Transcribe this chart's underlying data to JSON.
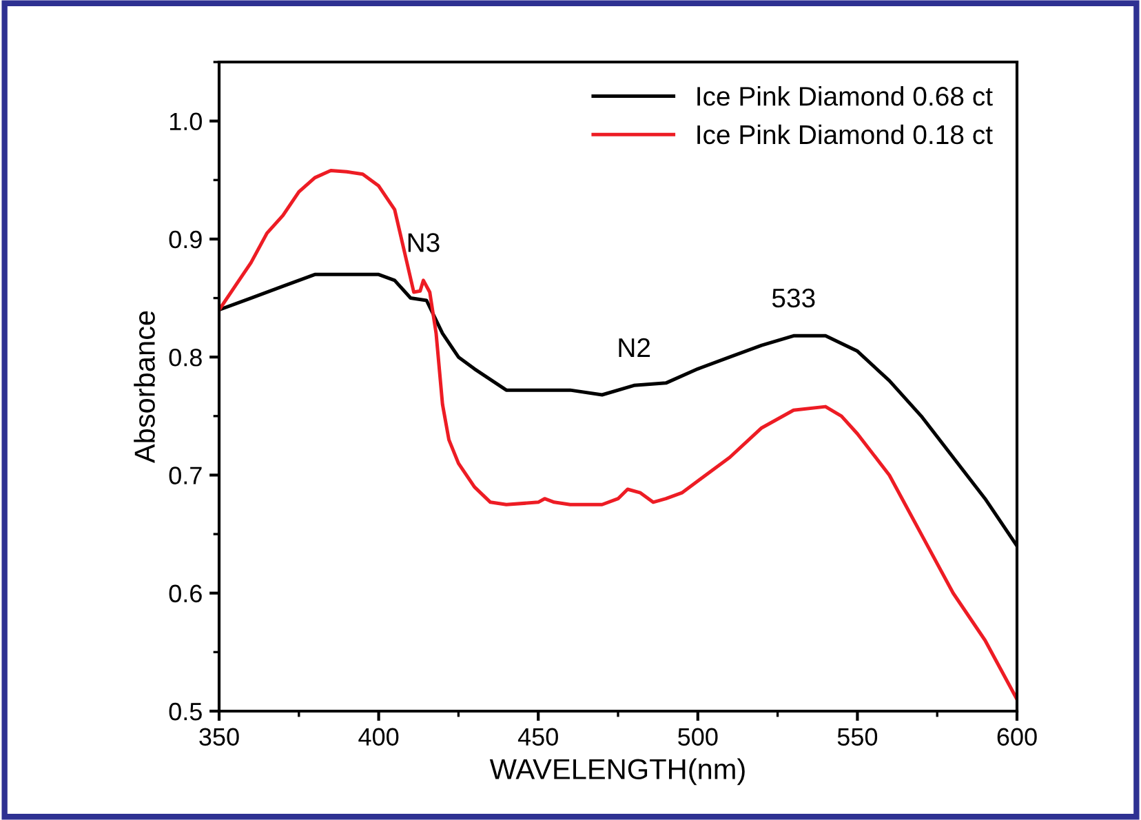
{
  "chart_data": {
    "type": "line",
    "xlabel": "WAVELENGTH(nm)",
    "ylabel": "Absorbance",
    "xlim": [
      350,
      600
    ],
    "xticks": [
      350,
      400,
      450,
      500,
      550,
      600
    ],
    "ylim": [
      0.5,
      1.05
    ],
    "yticks": [
      0.5,
      0.6,
      0.7,
      0.8,
      0.9,
      {
        "value": 1,
        "label": "1.0"
      }
    ],
    "grid": false,
    "legend": "top right",
    "marker": "none",
    "line_style": "solid",
    "annotations": [
      {
        "text": "N3",
        "x": 414,
        "y": 0.865
      },
      {
        "text": "N2",
        "x": 480,
        "y": 0.776
      },
      {
        "text": "533",
        "x": 530,
        "y": 0.818
      }
    ],
    "series": [
      {
        "name": "Ice Pink Diamond 0.68 ct",
        "color": "#000000",
        "x": [
          350,
          360,
          370,
          380,
          390,
          400,
          405,
          410,
          415,
          420,
          425,
          430,
          440,
          450,
          460,
          470,
          480,
          490,
          500,
          510,
          520,
          530,
          540,
          550,
          560,
          570,
          580,
          590,
          600
        ],
        "values": [
          0.84,
          0.85,
          0.86,
          0.87,
          0.87,
          0.87,
          0.865,
          0.85,
          0.848,
          0.82,
          0.8,
          0.79,
          0.772,
          0.772,
          0.772,
          0.768,
          0.776,
          0.778,
          0.79,
          0.8,
          0.81,
          0.818,
          0.818,
          0.805,
          0.78,
          0.75,
          0.715,
          0.68,
          0.64
        ]
      },
      {
        "name": "Ice Pink Diamond 0.18 ct",
        "color": "#ed1c24",
        "x": [
          350,
          355,
          360,
          365,
          370,
          375,
          380,
          385,
          390,
          395,
          400,
          405,
          408,
          411,
          413,
          414,
          416,
          418,
          420,
          422,
          425,
          430,
          435,
          440,
          450,
          452,
          455,
          460,
          470,
          475,
          478,
          482,
          486,
          490,
          495,
          500,
          510,
          520,
          530,
          540,
          545,
          550,
          560,
          570,
          580,
          590,
          600
        ],
        "values": [
          0.84,
          0.86,
          0.88,
          0.905,
          0.92,
          0.94,
          0.952,
          0.958,
          0.957,
          0.955,
          0.945,
          0.925,
          0.89,
          0.855,
          0.856,
          0.865,
          0.855,
          0.82,
          0.76,
          0.73,
          0.71,
          0.69,
          0.677,
          0.675,
          0.677,
          0.68,
          0.677,
          0.675,
          0.675,
          0.68,
          0.688,
          0.685,
          0.677,
          0.68,
          0.685,
          0.695,
          0.715,
          0.74,
          0.755,
          0.758,
          0.75,
          0.735,
          0.7,
          0.65,
          0.6,
          0.56,
          0.51
        ]
      }
    ]
  }
}
